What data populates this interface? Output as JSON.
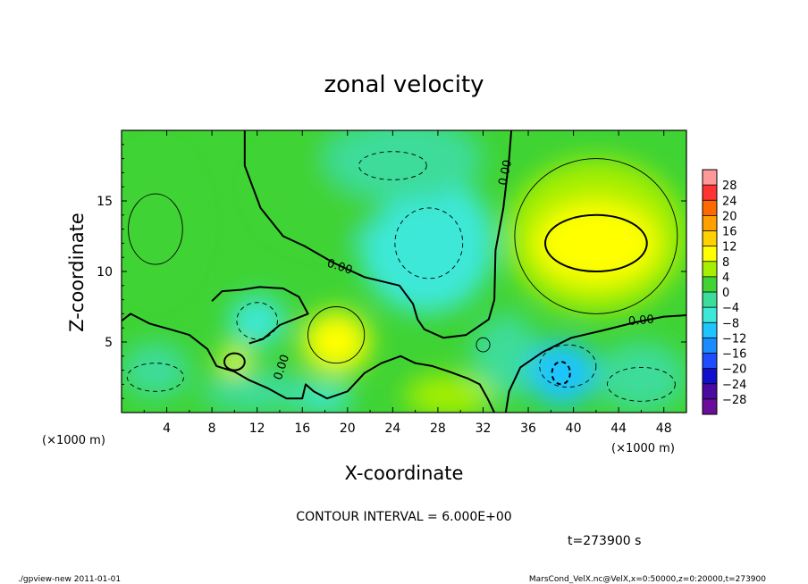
{
  "chart_data": {
    "type": "heatmap",
    "title": "zonal velocity",
    "xlabel": "X-coordinate",
    "ylabel": "Z-coordinate",
    "x_unit": "(×1000 m)",
    "y_unit": "(×1000 m)",
    "xlim": [
      0,
      50
    ],
    "ylim": [
      0,
      20
    ],
    "x_ticks": [
      4,
      8,
      12,
      16,
      20,
      24,
      28,
      32,
      36,
      40,
      44,
      48
    ],
    "y_ticks": [
      5,
      10,
      15
    ],
    "contour_interval_text": "CONTOUR INTERVAL = 6.000E+00",
    "time_text": "t=273900 s",
    "zero_contour_label": "0.00",
    "colorbar": {
      "levels": [
        28,
        24,
        20,
        16,
        12,
        8,
        4,
        0,
        -4,
        -8,
        -12,
        -16,
        -20,
        -24,
        -28
      ],
      "colors": [
        "#ff9999",
        "#ff3333",
        "#ff6a00",
        "#ff9f00",
        "#ffd100",
        "#ffff00",
        "#a6ef00",
        "#3fd334",
        "#3ddc9a",
        "#3de8d8",
        "#1ec5ff",
        "#1a8cff",
        "#1f4dff",
        "#1010cc",
        "#4b0aa0",
        "#6a0d9a"
      ]
    },
    "field_blobs": [
      {
        "x": 42.0,
        "z": 12.0,
        "rx": 5.5,
        "rz": 3.0,
        "u": 11
      },
      {
        "x": 42.0,
        "z": 12.5,
        "rx": 8.0,
        "rz": 5.5,
        "u": 6
      },
      {
        "x": 19.0,
        "z": 5.0,
        "rx": 3.0,
        "rz": 2.2,
        "u": 8
      },
      {
        "x": 10.0,
        "z": 3.7,
        "rx": 1.3,
        "rz": 0.9,
        "u": 9
      },
      {
        "x": 3.0,
        "z": 13.5,
        "rx": 3.5,
        "rz": 5.0,
        "u": 3
      },
      {
        "x": 29.0,
        "z": 1.2,
        "rx": 4.0,
        "rz": 1.5,
        "u": 4
      },
      {
        "x": 18.0,
        "z": 16.0,
        "rx": 6.0,
        "rz": 4.0,
        "u": 2
      },
      {
        "x": 27.0,
        "z": 12.0,
        "rx": 6.0,
        "rz": 5.0,
        "u": -5
      },
      {
        "x": 25.0,
        "z": 18.0,
        "rx": 7.0,
        "rz": 3.0,
        "u": -3
      },
      {
        "x": 39.0,
        "z": 2.8,
        "rx": 3.0,
        "rz": 2.3,
        "u": -9
      },
      {
        "x": 12.0,
        "z": 6.5,
        "rx": 2.5,
        "rz": 1.8,
        "u": -6
      },
      {
        "x": 12.0,
        "z": 1.5,
        "rx": 5.0,
        "rz": 1.5,
        "u": -3
      },
      {
        "x": 18.0,
        "z": 1.0,
        "rx": 2.5,
        "rz": 1.0,
        "u": -5
      },
      {
        "x": 46.0,
        "z": 2.5,
        "rx": 4.0,
        "rz": 2.5,
        "u": -4
      },
      {
        "x": 3.0,
        "z": 3.0,
        "rx": 3.0,
        "rz": 2.0,
        "u": -3
      },
      {
        "x": 34.0,
        "z": 4.0,
        "rx": 3.0,
        "rz": 3.0,
        "u": -2
      }
    ],
    "field_background": 1.5,
    "zero_contour_paths": [
      [
        [
          10.9,
          20
        ],
        [
          10.9,
          17.5
        ],
        [
          12.3,
          14.5
        ],
        [
          14.3,
          12.5
        ],
        [
          16.2,
          11.8
        ],
        [
          18.8,
          10.6
        ],
        [
          21.5,
          9.6
        ],
        [
          24.6,
          9.0
        ],
        [
          25.8,
          7.7
        ],
        [
          26.2,
          6.6
        ],
        [
          26.8,
          5.9
        ],
        [
          28.5,
          5.3
        ],
        [
          30.5,
          5.5
        ],
        [
          32.5,
          6.6
        ],
        [
          33.0,
          8.0
        ],
        [
          33.1,
          11.5
        ],
        [
          33.8,
          14.5
        ],
        [
          34.3,
          18.0
        ],
        [
          34.5,
          20
        ]
      ],
      [
        [
          0,
          6.5
        ],
        [
          0.8,
          7.0
        ],
        [
          2.5,
          6.3
        ],
        [
          4.3,
          5.9
        ],
        [
          6.0,
          5.5
        ],
        [
          7.6,
          4.5
        ],
        [
          8.4,
          3.3
        ],
        [
          10.0,
          2.9
        ],
        [
          11.3,
          2.3
        ],
        [
          13.0,
          1.7
        ],
        [
          14.6,
          1.0
        ],
        [
          16.0,
          1.0
        ],
        [
          16.3,
          2.0
        ],
        [
          17.0,
          1.5
        ],
        [
          18.2,
          1.0
        ],
        [
          20.0,
          1.5
        ],
        [
          21.5,
          2.8
        ],
        [
          23.0,
          3.5
        ],
        [
          24.7,
          4.0
        ],
        [
          26.0,
          3.5
        ],
        [
          27.5,
          3.3
        ],
        [
          29.0,
          2.9
        ],
        [
          30.7,
          2.4
        ],
        [
          31.7,
          2.0
        ],
        [
          32.4,
          1.0
        ],
        [
          33.0,
          0
        ]
      ],
      [
        [
          34.0,
          0
        ],
        [
          34.3,
          1.5
        ],
        [
          35.3,
          3.2
        ],
        [
          37.3,
          4.3
        ],
        [
          39.8,
          5.3
        ],
        [
          42.5,
          5.8
        ],
        [
          45.5,
          6.4
        ],
        [
          48.0,
          6.8
        ],
        [
          50,
          6.9
        ]
      ],
      [
        [
          8.0,
          7.9
        ],
        [
          8.9,
          8.6
        ],
        [
          10.6,
          8.7
        ],
        [
          12.2,
          8.9
        ],
        [
          14.3,
          8.8
        ],
        [
          15.7,
          8.2
        ],
        [
          16.5,
          7.0
        ],
        [
          14.0,
          6.2
        ],
        [
          12.5,
          5.2
        ],
        [
          11.3,
          4.9
        ]
      ]
    ],
    "closed_contours": [
      {
        "x": 42.0,
        "z": 12.0,
        "rx": 4.5,
        "rz": 2.0,
        "style": "solid",
        "weight": 2
      },
      {
        "x": 10.0,
        "z": 3.6,
        "rx": 0.9,
        "rz": 0.6,
        "style": "solid",
        "weight": 2
      },
      {
        "x": 38.9,
        "z": 2.8,
        "rx": 0.8,
        "rz": 0.8,
        "style": "dashed",
        "weight": 2
      },
      {
        "x": 42.0,
        "z": 12.5,
        "rx": 7.2,
        "rz": 5.5,
        "style": "solid",
        "weight": 1
      },
      {
        "x": 19.0,
        "z": 5.5,
        "rx": 2.5,
        "rz": 2.0,
        "style": "solid",
        "weight": 1
      },
      {
        "x": 3.0,
        "z": 13.0,
        "rx": 2.4,
        "rz": 2.5,
        "style": "solid",
        "weight": 1
      },
      {
        "x": 27.2,
        "z": 12.0,
        "rx": 3.0,
        "rz": 2.5,
        "style": "dashed",
        "weight": 1
      },
      {
        "x": 24.0,
        "z": 17.5,
        "rx": 3.0,
        "rz": 1.0,
        "style": "dashed",
        "weight": 1
      },
      {
        "x": 39.5,
        "z": 3.3,
        "rx": 2.5,
        "rz": 1.5,
        "style": "dashed",
        "weight": 1
      },
      {
        "x": 12.0,
        "z": 6.5,
        "rx": 1.8,
        "rz": 1.3,
        "style": "dashed",
        "weight": 1
      },
      {
        "x": 3.0,
        "z": 2.5,
        "rx": 2.5,
        "rz": 1.0,
        "style": "dashed",
        "weight": 1
      },
      {
        "x": 46.0,
        "z": 2.0,
        "rx": 3.0,
        "rz": 1.2,
        "style": "dashed",
        "weight": 1
      },
      {
        "x": 32.0,
        "z": 4.8,
        "rx": 0.6,
        "rz": 0.5,
        "style": "solid",
        "weight": 1
      }
    ],
    "contour_label_positions": [
      {
        "x": 19.3,
        "z": 10.3,
        "rotate": 18
      },
      {
        "x": 34.0,
        "z": 17.0,
        "rotate": -78
      },
      {
        "x": 46.0,
        "z": 6.5,
        "rotate": -5
      },
      {
        "x": 14.2,
        "z": 3.2,
        "rotate": -72
      }
    ]
  },
  "footer": {
    "left": "./gpview-new   2011-01-01",
    "right": "MarsCond_VelX.nc@VelX,x=0:50000,z=0:20000,t=273900"
  }
}
